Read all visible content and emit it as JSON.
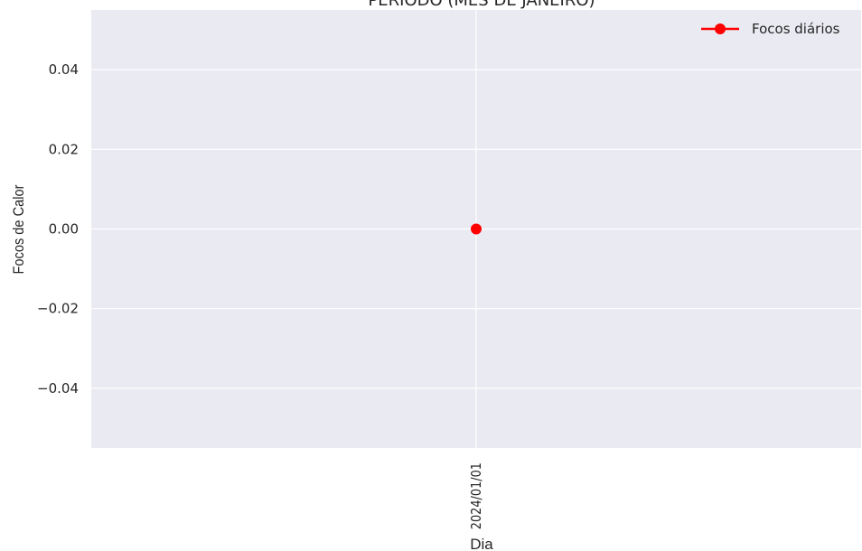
{
  "chart_data": {
    "type": "line",
    "title": "PERÍODO (MÊS DE JANEIRO)",
    "xlabel": "Dia",
    "ylabel": "Focos de Calor",
    "categories": [
      "2024/01/01"
    ],
    "series": [
      {
        "name": "Focos diários",
        "values": [
          0
        ],
        "color": "#ff0000",
        "marker": "circle"
      }
    ],
    "ylim": [
      -0.055,
      0.055
    ],
    "yticks": [
      -0.04,
      -0.02,
      0.0,
      0.02,
      0.04
    ],
    "ytick_labels": [
      "−0.04",
      "−0.02",
      "0.00",
      "0.02",
      "0.04"
    ],
    "grid": true,
    "legend": "top-right",
    "background_color": "#eaeaf2",
    "grid_color": "#ffffff"
  }
}
